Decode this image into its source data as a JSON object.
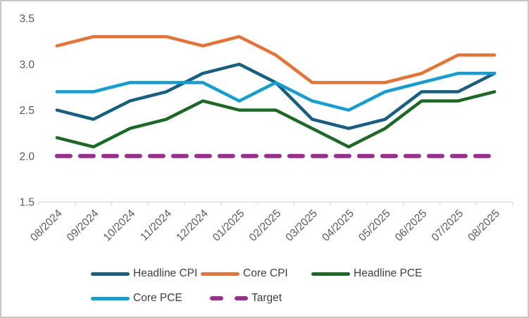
{
  "frame": {
    "background_color": "#ffffff",
    "border_color": "#c7c7c7"
  },
  "chart_data": {
    "type": "line",
    "title": "",
    "xlabel": "",
    "ylabel": "",
    "grid": false,
    "legend_position": "bottom",
    "x_axis": {
      "rotation": -45,
      "line_color": "#d9d9d9",
      "label_color": "#595959"
    },
    "y_axis": {
      "min": 1.5,
      "max": 3.5,
      "tick_labels": [
        "3.5",
        "3.0",
        "2.5",
        "2.0",
        "1.5"
      ],
      "tick_values": [
        3.5,
        3.0,
        2.5,
        2.0,
        1.5
      ],
      "label_color": "#595959"
    },
    "categories": [
      "08/2024",
      "09/2024",
      "10/2024",
      "11/2024",
      "12/2024",
      "01/2025",
      "02/2025",
      "03/2025",
      "04/2025",
      "05/2025",
      "06/2025",
      "07/2025",
      "08/2025"
    ],
    "series": [
      {
        "name": "Headline CPI",
        "color": "#156082",
        "style": "solid",
        "values": [
          2.5,
          2.4,
          2.6,
          2.7,
          2.9,
          3.0,
          2.8,
          2.4,
          2.3,
          2.4,
          2.7,
          2.7,
          2.9
        ]
      },
      {
        "name": "Core CPI",
        "color": "#E97132",
        "style": "solid",
        "values": [
          3.2,
          3.3,
          3.3,
          3.3,
          3.2,
          3.3,
          3.1,
          2.8,
          2.8,
          2.8,
          2.9,
          3.1,
          3.1
        ]
      },
      {
        "name": "Headline PCE",
        "color": "#196B24",
        "style": "solid",
        "values": [
          2.2,
          2.1,
          2.3,
          2.4,
          2.6,
          2.5,
          2.5,
          2.3,
          2.1,
          2.3,
          2.6,
          2.6,
          2.7
        ]
      },
      {
        "name": "Core PCE",
        "color": "#0F9ED5",
        "style": "solid",
        "values": [
          2.7,
          2.7,
          2.8,
          2.8,
          2.8,
          2.6,
          2.8,
          2.6,
          2.5,
          2.7,
          2.8,
          2.9,
          2.9
        ]
      },
      {
        "name": "Target",
        "color": "#A02B93",
        "style": "dashed",
        "values": [
          2.0,
          2.0,
          2.0,
          2.0,
          2.0,
          2.0,
          2.0,
          2.0,
          2.0,
          2.0,
          2.0,
          2.0,
          2.0
        ]
      }
    ],
    "legend_text_color": "#3f3f3f",
    "legend_rows": [
      3,
      2
    ]
  }
}
